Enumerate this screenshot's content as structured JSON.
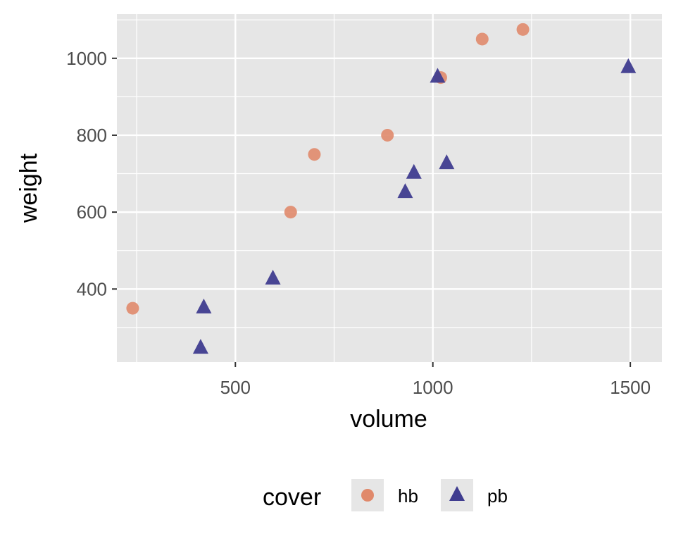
{
  "chart_data": {
    "type": "scatter",
    "xlabel": "volume",
    "ylabel": "weight",
    "xlim": [
      200,
      1580
    ],
    "ylim": [
      210,
      1115
    ],
    "x_major_ticks": [
      500,
      1000,
      1500
    ],
    "x_minor_ticks": [
      250,
      750,
      1250
    ],
    "y_major_ticks": [
      400,
      600,
      800,
      1000
    ],
    "y_minor_ticks": [
      300,
      500,
      700,
      900,
      1100
    ],
    "grid": true,
    "panel_background": "#E6E6E6",
    "legend": {
      "title": "cover",
      "placement": "bottom"
    },
    "series": [
      {
        "name": "hb",
        "shape": "circle",
        "color": "#E0896B",
        "points": [
          {
            "x": 240,
            "y": 350
          },
          {
            "x": 640,
            "y": 600
          },
          {
            "x": 700,
            "y": 750
          },
          {
            "x": 885,
            "y": 800
          },
          {
            "x": 1020,
            "y": 950
          },
          {
            "x": 1125,
            "y": 1050
          },
          {
            "x": 1228,
            "y": 1075
          }
        ]
      },
      {
        "name": "pb",
        "shape": "triangle",
        "color": "#3F3C8F",
        "points": [
          {
            "x": 412,
            "y": 250
          },
          {
            "x": 420,
            "y": 355
          },
          {
            "x": 595,
            "y": 430
          },
          {
            "x": 930,
            "y": 655
          },
          {
            "x": 952,
            "y": 705
          },
          {
            "x": 1012,
            "y": 955
          },
          {
            "x": 1035,
            "y": 730
          },
          {
            "x": 1495,
            "y": 980
          }
        ]
      }
    ]
  }
}
